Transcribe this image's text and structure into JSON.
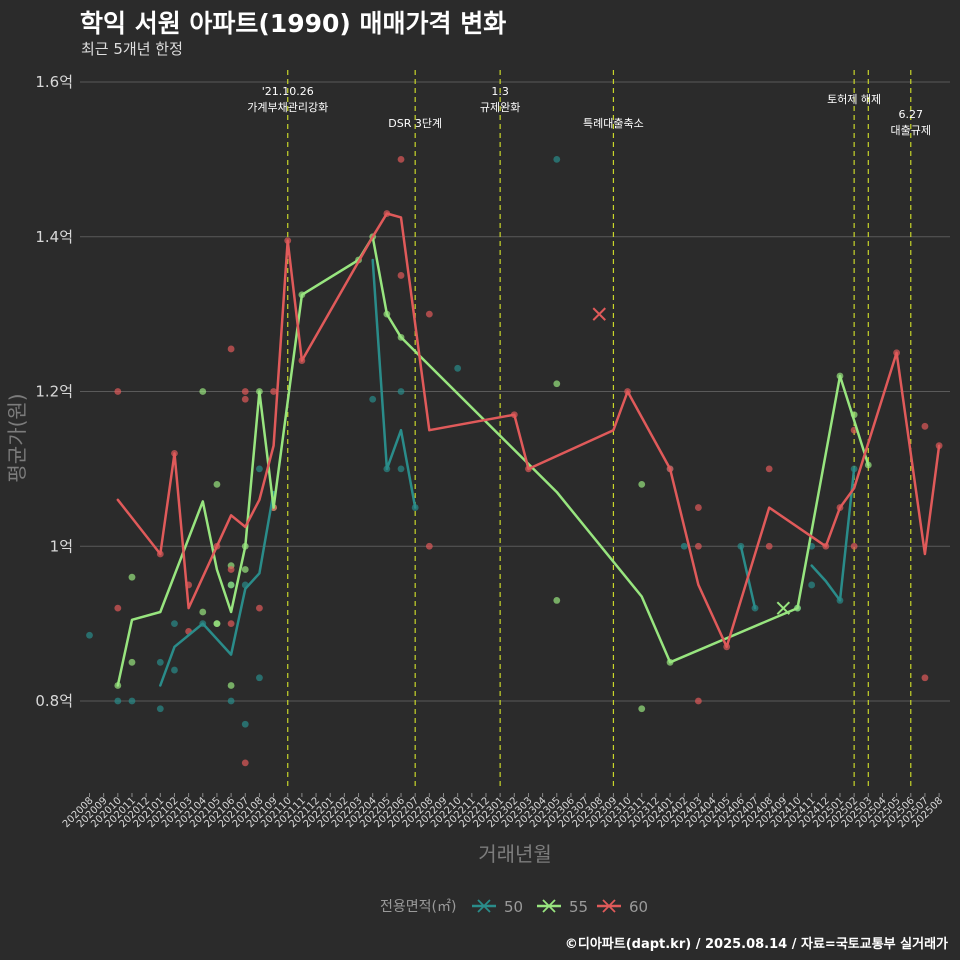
{
  "title": "학익 서원 아파트(1990) 매매가격 변화",
  "subtitle": "최근 5개년 한정",
  "caption": "©디아파트(dapt.kr) / 2025.08.14 / 자료=국토교통부 실거래가",
  "chart_data": {
    "type": "line",
    "xlabel": "거래년월",
    "ylabel": "평균가(원)",
    "ylim": [
      0.68,
      1.62
    ],
    "y_ticks": [
      {
        "value": 0.8,
        "label": "0.8억"
      },
      {
        "value": 1.0,
        "label": "1억"
      },
      {
        "value": 1.2,
        "label": "1.2억"
      },
      {
        "value": 1.4,
        "label": "1.4억"
      },
      {
        "value": 1.6,
        "label": "1.6억"
      }
    ],
    "grid": true,
    "legend_position": "bottom",
    "legend_title": "전용면적(㎡)",
    "categories": [
      "202008",
      "202009",
      "202010",
      "202011",
      "202012",
      "202101",
      "202102",
      "202103",
      "202104",
      "202105",
      "202106",
      "202107",
      "202108",
      "202109",
      "202110",
      "202111",
      "202112",
      "202201",
      "202202",
      "202203",
      "202204",
      "202205",
      "202206",
      "202207",
      "202208",
      "202209",
      "202210",
      "202211",
      "202212",
      "202301",
      "202302",
      "202303",
      "202304",
      "202305",
      "202306",
      "202307",
      "202308",
      "202309",
      "202310",
      "202311",
      "202312",
      "202401",
      "202402",
      "202403",
      "202404",
      "202405",
      "202406",
      "202407",
      "202408",
      "202409",
      "202410",
      "202411",
      "202412",
      "202501",
      "202502",
      "202503",
      "202504",
      "202505",
      "202506",
      "202507",
      "202508"
    ],
    "series": [
      {
        "name": "50",
        "color": "#2a8c8a",
        "line_segments": [
          [
            [
              "202101",
              0.82
            ],
            [
              "202102",
              0.87
            ],
            [
              "202104",
              0.9
            ],
            [
              "202106",
              0.86
            ],
            [
              "202107",
              0.945
            ],
            [
              "202108",
              0.965
            ],
            [
              "202109",
              1.07
            ]
          ],
          [
            [
              "202204",
              1.37
            ],
            [
              "202205",
              1.1
            ],
            [
              "202206",
              1.15
            ],
            [
              "202207",
              1.05
            ]
          ],
          [
            [
              "202406",
              1.0
            ],
            [
              "202407",
              0.92
            ]
          ],
          [
            [
              "202411",
              0.975
            ],
            [
              "202412",
              0.955
            ],
            [
              "202501",
              0.93
            ],
            [
              "202502",
              1.1
            ]
          ]
        ],
        "points": [
          [
            "202008",
            0.885
          ],
          [
            "202010",
            0.8
          ],
          [
            "202011",
            0.8
          ],
          [
            "202101",
            0.85
          ],
          [
            "202101",
            0.79
          ],
          [
            "202102",
            0.9
          ],
          [
            "202102",
            0.84
          ],
          [
            "202104",
            0.9
          ],
          [
            "202106",
            0.8
          ],
          [
            "202106",
            0.95
          ],
          [
            "202107",
            0.77
          ],
          [
            "202107",
            0.95
          ],
          [
            "202108",
            0.83
          ],
          [
            "202108",
            1.1
          ],
          [
            "202204",
            1.19
          ],
          [
            "202205",
            1.1
          ],
          [
            "202206",
            1.2
          ],
          [
            "202206",
            1.1
          ],
          [
            "202207",
            1.05
          ],
          [
            "202210",
            1.23
          ],
          [
            "202305",
            1.5
          ],
          [
            "202401",
            1.1
          ],
          [
            "202402",
            1.0
          ],
          [
            "202406",
            1.0
          ],
          [
            "202407",
            0.92
          ],
          [
            "202410",
            0.92
          ],
          [
            "202411",
            1.0
          ],
          [
            "202411",
            0.95
          ],
          [
            "202501",
            0.93
          ],
          [
            "202502",
            1.1
          ]
        ],
        "crosses": []
      },
      {
        "name": "55",
        "color": "#98e57f",
        "line_segments": [
          [
            [
              "202010",
              0.82
            ],
            [
              "202011",
              0.905
            ],
            [
              "202101",
              0.915
            ],
            [
              "202104",
              1.058
            ],
            [
              "202105",
              0.97
            ],
            [
              "202106",
              0.915
            ],
            [
              "202107",
              1.0
            ],
            [
              "202108",
              1.2
            ],
            [
              "202109",
              1.05
            ],
            [
              "202111",
              1.325
            ],
            [
              "202203",
              1.37
            ],
            [
              "202204",
              1.4
            ],
            [
              "202205",
              1.3
            ],
            [
              "202206",
              1.27
            ],
            [
              "202305",
              1.07
            ],
            [
              "202311",
              0.935
            ],
            [
              "202401",
              0.85
            ],
            [
              "202410",
              0.92
            ],
            [
              "202501",
              1.22
            ],
            [
              "202503",
              1.105
            ]
          ]
        ],
        "points": [
          [
            "202010",
            0.82
          ],
          [
            "202011",
            0.85
          ],
          [
            "202011",
            0.96
          ],
          [
            "202104",
            1.2
          ],
          [
            "202104",
            0.915
          ],
          [
            "202105",
            1.08
          ],
          [
            "202105",
            0.9
          ],
          [
            "202105",
            0.9
          ],
          [
            "202106",
            0.82
          ],
          [
            "202106",
            0.975
          ],
          [
            "202106",
            0.95
          ],
          [
            "202107",
            0.97
          ],
          [
            "202107",
            1.0
          ],
          [
            "202108",
            1.2
          ],
          [
            "202109",
            1.05
          ],
          [
            "202111",
            1.325
          ],
          [
            "202203",
            1.37
          ],
          [
            "202204",
            1.4
          ],
          [
            "202205",
            1.3
          ],
          [
            "202206",
            1.27
          ],
          [
            "202305",
            1.21
          ],
          [
            "202305",
            0.93
          ],
          [
            "202311",
            0.79
          ],
          [
            "202311",
            1.08
          ],
          [
            "202401",
            0.85
          ],
          [
            "202410",
            0.92
          ],
          [
            "202501",
            1.22
          ],
          [
            "202502",
            1.17
          ],
          [
            "202503",
            1.105
          ]
        ],
        "crosses": [
          [
            "202409",
            0.92
          ]
        ]
      },
      {
        "name": "60",
        "color": "#e05a5a",
        "line_segments": [
          [
            [
              "202010",
              1.06
            ],
            [
              "202101",
              0.99
            ],
            [
              "202102",
              1.12
            ],
            [
              "202103",
              0.92
            ],
            [
              "202105",
              1.0
            ],
            [
              "202106",
              1.04
            ],
            [
              "202107",
              1.025
            ],
            [
              "202108",
              1.06
            ],
            [
              "202109",
              1.13
            ],
            [
              "202110",
              1.395
            ],
            [
              "202111",
              1.24
            ],
            [
              "202204",
              1.4
            ],
            [
              "202205",
              1.43
            ],
            [
              "202206",
              1.425
            ],
            [
              "202208",
              1.15
            ],
            [
              "202302",
              1.17
            ],
            [
              "202303",
              1.1
            ],
            [
              "202309",
              1.15
            ],
            [
              "202310",
              1.2
            ],
            [
              "202401",
              1.1
            ],
            [
              "202403",
              0.95
            ],
            [
              "202405",
              0.87
            ],
            [
              "202408",
              1.05
            ],
            [
              "202412",
              1.0
            ],
            [
              "202501",
              1.05
            ],
            [
              "202502",
              1.075
            ],
            [
              "202505",
              1.25
            ],
            [
              "202507",
              0.99
            ],
            [
              "202508",
              1.13
            ]
          ]
        ],
        "points": [
          [
            "202010",
            1.2
          ],
          [
            "202010",
            0.92
          ],
          [
            "202101",
            0.99
          ],
          [
            "202102",
            1.12
          ],
          [
            "202103",
            0.95
          ],
          [
            "202103",
            0.89
          ],
          [
            "202105",
            1.0
          ],
          [
            "202106",
            1.255
          ],
          [
            "202106",
            0.97
          ],
          [
            "202106",
            0.9
          ],
          [
            "202107",
            1.2
          ],
          [
            "202107",
            1.19
          ],
          [
            "202107",
            0.72
          ],
          [
            "202108",
            0.92
          ],
          [
            "202109",
            1.2
          ],
          [
            "202109",
            1.05
          ],
          [
            "202110",
            1.395
          ],
          [
            "202111",
            1.24
          ],
          [
            "202205",
            1.43
          ],
          [
            "202206",
            1.5
          ],
          [
            "202206",
            1.35
          ],
          [
            "202208",
            1.3
          ],
          [
            "202208",
            1.0
          ],
          [
            "202302",
            1.17
          ],
          [
            "202303",
            1.1
          ],
          [
            "202310",
            1.2
          ],
          [
            "202401",
            1.1
          ],
          [
            "202403",
            1.05
          ],
          [
            "202403",
            1.0
          ],
          [
            "202403",
            0.8
          ],
          [
            "202405",
            0.87
          ],
          [
            "202408",
            1.1
          ],
          [
            "202408",
            1.0
          ],
          [
            "202412",
            1.0
          ],
          [
            "202501",
            1.05
          ],
          [
            "202502",
            1.15
          ],
          [
            "202502",
            1.0
          ],
          [
            "202505",
            1.25
          ],
          [
            "202507",
            1.155
          ],
          [
            "202507",
            0.83
          ],
          [
            "202508",
            1.13
          ]
        ],
        "crosses": [
          [
            "202308",
            1.3
          ]
        ]
      }
    ],
    "annotations": [
      {
        "x": "202110",
        "lines": [
          "'21.10.26",
          "가계부채관리강화"
        ]
      },
      {
        "x": "202207",
        "lines": [
          "DSR 3단계"
        ]
      },
      {
        "x": "202301",
        "lines": [
          "1.3",
          "규제완화"
        ]
      },
      {
        "x": "202309",
        "lines": [
          "특례대출축소"
        ]
      },
      {
        "x": "202502",
        "lines": [
          "토허제 해제"
        ]
      },
      {
        "x": "202503",
        "lines": []
      },
      {
        "x": "202506",
        "lines": [
          "6.27",
          "대출규제"
        ]
      }
    ],
    "vline_color": "#c8d62a"
  }
}
